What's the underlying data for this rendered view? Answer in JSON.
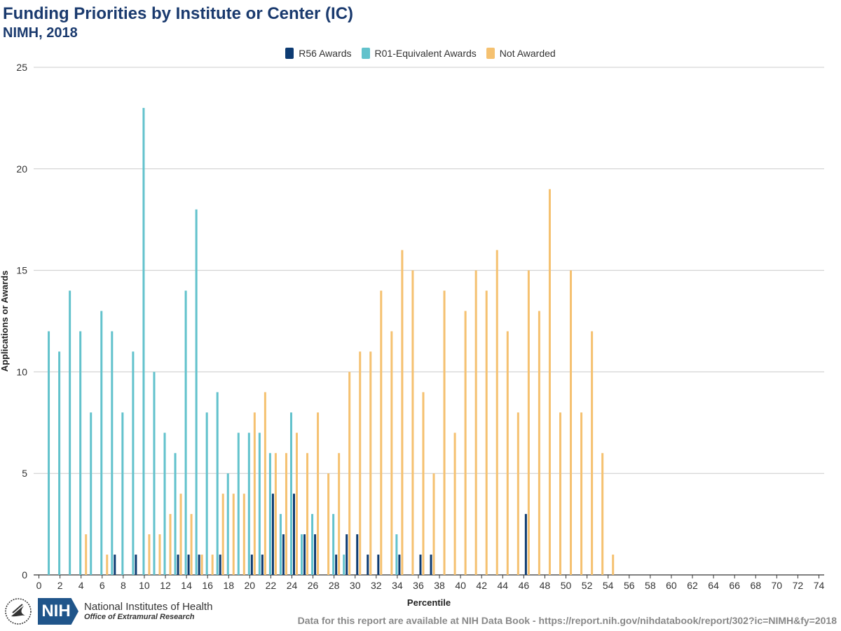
{
  "header": {
    "title": "Funding Priorities by Institute or Center (IC)",
    "subtitle": "NIMH, 2018"
  },
  "legend": [
    {
      "label": "R56 Awards",
      "color": "#0d3b72"
    },
    {
      "label": "R01-Equivalent Awards",
      "color": "#62c2cc"
    },
    {
      "label": "Not Awarded",
      "color": "#f5c170"
    }
  ],
  "footer": {
    "org_name": "National Institutes of Health",
    "office": "Office of Extramural Research",
    "logo_text": "NIH",
    "source": "Data for this report are available at NIH Data Book - https://report.nih.gov/nihdatabook/report/302?ic=NIMH&fy=2018"
  },
  "chart_data": {
    "type": "bar",
    "title": "Funding Priorities by Institute or Center (IC)",
    "subtitle": "NIMH, 2018",
    "xlabel": "Percentile",
    "ylabel": "Applications or Awards",
    "ylim": [
      0,
      25
    ],
    "yticks": [
      0,
      5,
      10,
      15,
      20,
      25
    ],
    "xlim": [
      0,
      74
    ],
    "xticks": [
      0,
      2,
      4,
      6,
      8,
      10,
      12,
      14,
      16,
      18,
      20,
      22,
      24,
      26,
      28,
      30,
      32,
      34,
      36,
      38,
      40,
      42,
      44,
      46,
      48,
      50,
      52,
      54,
      56,
      58,
      60,
      62,
      64,
      66,
      68,
      70,
      72,
      74
    ],
    "grid": true,
    "legend_position": "top-center",
    "categories": [
      0,
      1,
      2,
      3,
      4,
      5,
      6,
      7,
      8,
      9,
      10,
      11,
      12,
      13,
      14,
      15,
      16,
      17,
      18,
      19,
      20,
      21,
      22,
      23,
      24,
      25,
      26,
      27,
      28,
      29,
      30,
      31,
      32,
      33,
      34,
      35,
      36,
      37,
      38,
      39,
      40,
      41,
      42,
      43,
      44,
      45,
      46,
      47,
      48,
      49,
      50,
      51,
      52,
      53,
      54,
      55,
      56,
      57,
      58,
      59,
      60,
      61,
      62,
      63,
      64,
      65,
      66,
      67,
      68,
      69,
      70,
      71,
      72,
      73,
      74
    ],
    "series": [
      {
        "name": "R56 Awards",
        "color": "#0d3b72",
        "values": [
          0,
          0,
          0,
          0,
          0,
          0,
          0,
          1,
          0,
          1,
          0,
          0,
          0,
          1,
          1,
          1,
          0,
          1,
          0,
          0,
          1,
          1,
          4,
          2,
          4,
          2,
          2,
          0,
          1,
          2,
          2,
          1,
          1,
          0,
          1,
          0,
          1,
          1,
          0,
          0,
          0,
          0,
          0,
          0,
          0,
          0,
          3,
          0,
          0,
          0,
          0,
          0,
          0,
          0,
          0,
          0,
          0,
          0,
          0,
          0,
          0,
          0,
          0,
          0,
          0,
          0,
          0,
          0,
          0,
          0,
          0,
          0,
          0,
          0,
          0
        ]
      },
      {
        "name": "R01-Equivalent Awards",
        "color": "#62c2cc",
        "values": [
          0,
          12,
          11,
          14,
          12,
          8,
          13,
          12,
          8,
          11,
          23,
          10,
          7,
          6,
          14,
          18,
          8,
          9,
          5,
          7,
          7,
          7,
          6,
          3,
          8,
          2,
          3,
          0,
          3,
          1,
          0,
          0,
          0,
          0,
          2,
          0,
          0,
          0,
          0,
          0,
          0,
          0,
          0,
          0,
          0,
          0,
          0,
          0,
          0,
          0,
          0,
          0,
          0,
          0,
          0,
          0,
          0,
          0,
          0,
          0,
          0,
          0,
          0,
          0,
          0,
          0,
          0,
          0,
          0,
          0,
          0,
          0,
          0,
          0,
          0
        ]
      },
      {
        "name": "Not Awarded",
        "color": "#f5c170",
        "values": [
          0,
          0,
          0,
          0,
          2,
          0,
          1,
          0,
          0,
          0,
          2,
          2,
          3,
          4,
          3,
          1,
          1,
          4,
          4,
          4,
          8,
          9,
          6,
          6,
          7,
          6,
          8,
          5,
          6,
          10,
          11,
          11,
          14,
          12,
          16,
          15,
          9,
          5,
          14,
          7,
          13,
          15,
          14,
          16,
          12,
          8,
          15,
          13,
          19,
          8,
          15,
          8,
          12,
          6,
          1,
          0,
          0,
          0,
          0,
          0,
          0,
          0,
          0,
          0,
          0,
          0,
          0,
          0,
          0,
          0,
          0,
          0,
          0,
          0,
          0
        ]
      }
    ]
  }
}
